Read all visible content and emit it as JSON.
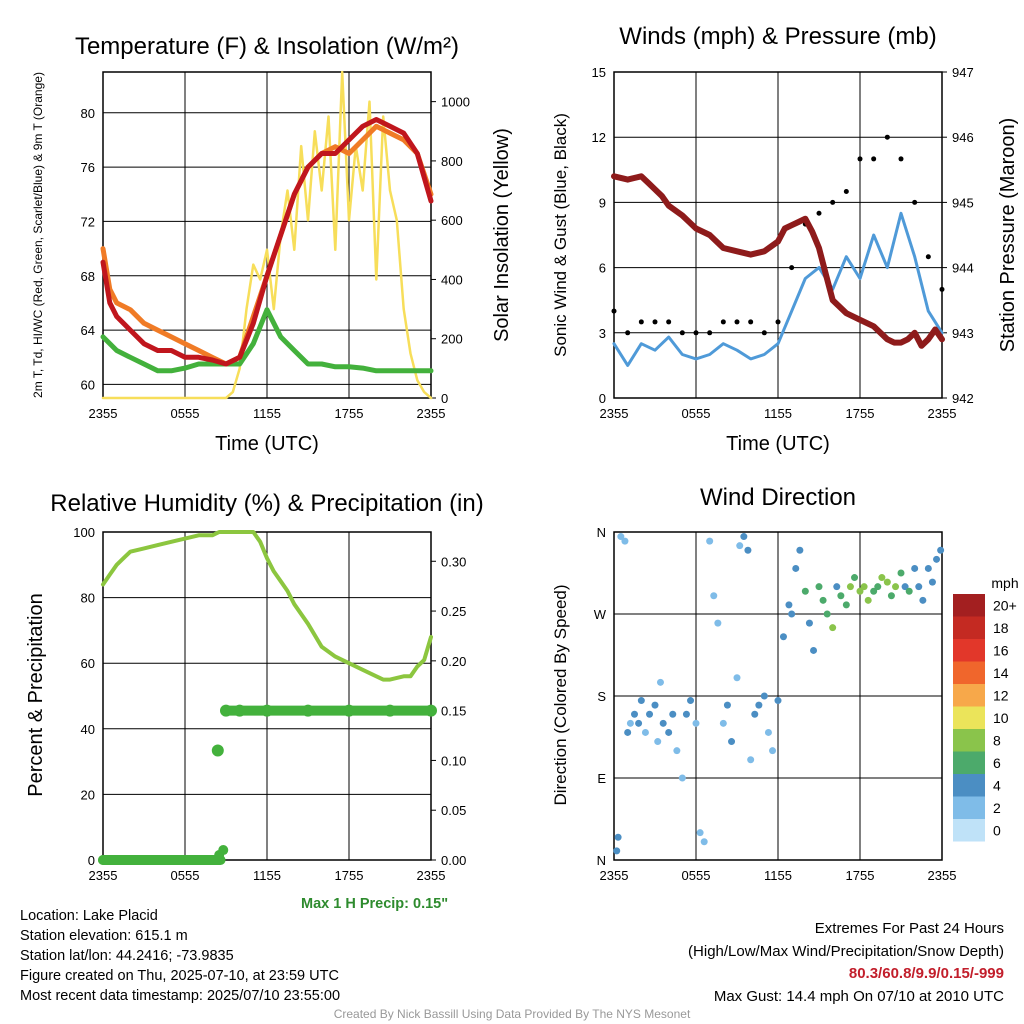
{
  "colors": {
    "red": "#c0161d",
    "orange": "#f07b26",
    "green": "#43b13c",
    "yellow": "#f7de5a",
    "blue": "#4f9ad8",
    "maroon": "#8e1b1b",
    "lightgreen": "#8cc63f",
    "precip": "#43b13c"
  },
  "chart_data": [
    {
      "type": "line",
      "title": "Temperature (F) & Insolation (W/m²)",
      "xlabel": "Time (UTC)",
      "ylabel": "2m T, Td, HI/WC (Red, Green, Scarlet/Blue) & 9m T (Orange)",
      "y2label": "Solar Insolation (Yellow)",
      "xticks": [
        "2355",
        "0555",
        "1155",
        "1755",
        "2355"
      ],
      "yticks": [
        60,
        64,
        68,
        72,
        76,
        80
      ],
      "y2ticks": [
        0,
        200,
        400,
        600,
        800,
        1000
      ],
      "ylim": [
        59,
        83
      ],
      "y2lim": [
        0,
        1100
      ],
      "xlim": [
        0,
        24
      ],
      "series": [
        {
          "color": "orange",
          "hours": [
            0,
            0.5,
            1,
            2,
            3,
            4,
            5,
            6,
            7,
            8,
            9,
            10,
            11,
            12,
            13,
            14,
            15,
            16,
            17,
            18,
            19,
            20,
            21,
            22,
            23,
            24
          ],
          "values": [
            70,
            67,
            66,
            65.5,
            64.5,
            64,
            63.5,
            63,
            62.5,
            62,
            61.5,
            62,
            65,
            68,
            71,
            74,
            76,
            77,
            77.5,
            77,
            78,
            79,
            78.5,
            78,
            77,
            74
          ]
        },
        {
          "color": "red",
          "hours": [
            0,
            0.5,
            1,
            2,
            3,
            4,
            5,
            6,
            7,
            8,
            9,
            10,
            11,
            12,
            13,
            14,
            15,
            16,
            17,
            18,
            19,
            20,
            21,
            22,
            23,
            24
          ],
          "values": [
            69,
            66,
            65,
            64,
            63,
            62.5,
            62.5,
            62,
            62,
            61.8,
            61.5,
            62,
            64.5,
            68,
            71,
            74,
            76,
            77,
            77,
            78,
            79,
            79.5,
            79,
            78.5,
            77,
            73.5
          ]
        },
        {
          "color": "green",
          "hours": [
            0,
            1,
            2,
            3,
            4,
            5,
            6,
            7,
            8,
            9,
            10,
            11,
            12,
            13,
            14,
            15,
            16,
            17,
            18,
            19,
            20,
            21,
            22,
            23,
            24
          ],
          "values": [
            63.5,
            62.5,
            62,
            61.5,
            61,
            61,
            61.2,
            61.5,
            61.5,
            61.5,
            61.5,
            63,
            65.5,
            63.5,
            62.5,
            61.5,
            61.5,
            61.3,
            61.3,
            61.2,
            61,
            61,
            61,
            61,
            61
          ]
        },
        {
          "color": "yellow",
          "axis": "y2",
          "hours": [
            0,
            9,
            9.5,
            10,
            10.5,
            11,
            11.5,
            12,
            12.5,
            13,
            13.5,
            14,
            14.5,
            15,
            15.5,
            16,
            16.5,
            17,
            17.5,
            18,
            18.5,
            19,
            19.5,
            20,
            20.5,
            21,
            21.5,
            22,
            22.5,
            23,
            23.5,
            24
          ],
          "values": [
            0,
            0,
            20,
            100,
            300,
            450,
            400,
            500,
            300,
            550,
            700,
            500,
            850,
            600,
            900,
            700,
            950,
            500,
            1100,
            600,
            850,
            700,
            1000,
            400,
            950,
            700,
            600,
            300,
            150,
            60,
            20,
            0
          ]
        }
      ]
    },
    {
      "type": "line",
      "title": "Winds (mph) & Pressure (mb)",
      "xlabel": "Time (UTC)",
      "ylabel": "Sonic Wind & Gust (Blue, Black)",
      "y2label": "Station Pressure (Maroon)",
      "xticks": [
        "2355",
        "0555",
        "1155",
        "1755",
        "2355"
      ],
      "yticks": [
        0,
        3,
        6,
        9,
        12,
        15
      ],
      "y2ticks": [
        942,
        943,
        944,
        945,
        946,
        947
      ],
      "ylim": [
        0,
        15
      ],
      "y2lim": [
        942,
        947
      ],
      "xlim": [
        0,
        24
      ],
      "series": [
        {
          "name": "wind",
          "color": "blue",
          "hours": [
            0,
            1,
            2,
            3,
            4,
            5,
            6,
            7,
            8,
            9,
            10,
            11,
            12,
            13,
            14,
            15,
            16,
            17,
            18,
            19,
            20,
            21,
            22,
            23,
            24
          ],
          "values": [
            2.5,
            1.5,
            2.5,
            2.2,
            2.8,
            2,
            1.8,
            2,
            2.5,
            2.2,
            1.8,
            2,
            2.5,
            4,
            5.5,
            6,
            5,
            6.5,
            5.5,
            7.5,
            6,
            8.5,
            6.5,
            4,
            3
          ]
        },
        {
          "name": "gust",
          "color": "#000000",
          "hours": [
            0,
            1,
            2,
            3,
            4,
            5,
            6,
            7,
            8,
            9,
            10,
            11,
            12,
            13,
            14,
            15,
            16,
            17,
            18,
            19,
            20,
            21,
            22,
            23,
            24
          ],
          "values": [
            4,
            3,
            3.5,
            3.5,
            3.5,
            3,
            3,
            3,
            3.5,
            3.5,
            3.5,
            3,
            3.5,
            6,
            8,
            8.5,
            9,
            9.5,
            11,
            11,
            12,
            11,
            9,
            6.5,
            5
          ]
        },
        {
          "name": "pressure",
          "color": "maroon",
          "axis": "y2",
          "hours": [
            0,
            1,
            2,
            2.5,
            3,
            3.5,
            4,
            5,
            5.5,
            6,
            7,
            8,
            9,
            10,
            11,
            12,
            12.5,
            13,
            13.5,
            14,
            14.5,
            15,
            15.5,
            16,
            17,
            18,
            19,
            19.5,
            20,
            20.5,
            21,
            21.5,
            22,
            22.5,
            23,
            23.5,
            24
          ],
          "values": [
            945.4,
            945.35,
            945.4,
            945.3,
            945.2,
            945.1,
            944.95,
            944.8,
            944.7,
            944.6,
            944.5,
            944.3,
            944.25,
            944.2,
            944.25,
            944.4,
            944.6,
            944.65,
            944.7,
            944.75,
            944.55,
            944.3,
            943.9,
            943.5,
            943.3,
            943.2,
            943.1,
            943,
            942.9,
            942.85,
            942.85,
            942.9,
            943,
            942.8,
            942.9,
            943.05,
            942.9
          ]
        }
      ]
    },
    {
      "type": "line",
      "title": "Relative Humidity (%) & Precipitation (in)",
      "ylabel": "Percent & Precipitation",
      "xticks": [
        "2355",
        "0555",
        "1155",
        "1755",
        "2355"
      ],
      "yticks": [
        0,
        20,
        40,
        60,
        80,
        100
      ],
      "y2ticks": [
        "0.00",
        "0.05",
        "0.10",
        "0.15",
        "0.20",
        "0.25",
        "0.30"
      ],
      "ylim": [
        0,
        100
      ],
      "y2lim": [
        0,
        0.3294
      ],
      "xlim": [
        0,
        24
      ],
      "series": [
        {
          "name": "rh",
          "color": "lightgreen",
          "hours": [
            0,
            0.5,
            1,
            1.5,
            2,
            3,
            4,
            5,
            6,
            7,
            8,
            8.5,
            9,
            10,
            11,
            11.5,
            12,
            12.5,
            13,
            13.5,
            14,
            15,
            16,
            17,
            18,
            19,
            20,
            20.5,
            21,
            22,
            22.5,
            23,
            23.5,
            24
          ],
          "values": [
            84,
            87,
            90,
            92,
            94,
            95,
            96,
            97,
            98,
            99,
            99,
            100,
            100,
            100,
            100,
            97,
            92,
            88,
            85,
            82,
            78,
            72,
            65,
            62,
            60,
            58,
            56,
            55,
            55,
            56,
            56,
            59,
            61,
            68
          ]
        },
        {
          "name": "precip",
          "color": "precip",
          "axis": "y2",
          "hours": [
            0,
            1,
            2,
            3,
            4,
            5,
            6,
            7,
            8,
            8.2,
            8.5,
            8.8,
            9,
            10,
            12,
            15,
            18,
            21,
            24
          ],
          "values": [
            0,
            0,
            0,
            0,
            0,
            0,
            0,
            0,
            0,
            0,
            0.005,
            0.01,
            0.15,
            0.15,
            0.15,
            0.15,
            0.15,
            0.15,
            0.15
          ]
        }
      ]
    },
    {
      "type": "scatter",
      "title": "Wind Direction",
      "ylabel": "Direction (Colored By Speed)",
      "xticks": [
        "2355",
        "0555",
        "1155",
        "1755",
        "2355"
      ],
      "yticks": [
        "N",
        "E",
        "S",
        "W",
        "N"
      ],
      "ylim": [
        0,
        360
      ],
      "xlim": [
        0,
        24
      ],
      "legend_title": "mph",
      "legend_labels": [
        "20+",
        "18",
        "16",
        "14",
        "12",
        "10",
        "8",
        "6",
        "4",
        "2",
        "0"
      ],
      "legend_colors": [
        "#a31f20",
        "#c42a22",
        "#e2372a",
        "#f0662c",
        "#f7a84a",
        "#ebe45a",
        "#8ac44b",
        "#4caa6b",
        "#4b8ec3",
        "#7fbce8",
        "#bfe2f8"
      ],
      "points": [
        [
          0.2,
          10,
          4
        ],
        [
          0.3,
          25,
          4
        ],
        [
          0.5,
          355,
          2
        ],
        [
          0.8,
          350,
          2
        ],
        [
          1.0,
          140,
          4
        ],
        [
          1.2,
          150,
          2
        ],
        [
          1.5,
          160,
          3
        ],
        [
          1.8,
          150,
          4
        ],
        [
          2,
          175,
          3
        ],
        [
          2.3,
          140,
          2
        ],
        [
          2.6,
          160,
          4
        ],
        [
          3,
          170,
          3
        ],
        [
          3.2,
          130,
          2
        ],
        [
          3.4,
          195,
          2
        ],
        [
          3.6,
          150,
          4
        ],
        [
          4,
          140,
          3
        ],
        [
          4.3,
          160,
          4
        ],
        [
          4.6,
          120,
          2
        ],
        [
          5,
          90,
          2
        ],
        [
          5.3,
          160,
          3
        ],
        [
          5.6,
          175,
          4
        ],
        [
          6,
          150,
          2
        ],
        [
          6.3,
          30,
          2
        ],
        [
          6.6,
          20,
          2
        ],
        [
          7,
          350,
          2
        ],
        [
          7.3,
          290,
          2
        ],
        [
          7.6,
          260,
          2
        ],
        [
          8,
          150,
          2
        ],
        [
          8.3,
          170,
          4
        ],
        [
          8.6,
          130,
          3
        ],
        [
          9,
          200,
          2
        ],
        [
          9.2,
          345,
          2
        ],
        [
          9.5,
          355,
          4
        ],
        [
          9.8,
          340,
          3
        ],
        [
          10,
          110,
          2
        ],
        [
          10.3,
          160,
          3
        ],
        [
          10.6,
          170,
          4
        ],
        [
          11,
          180,
          3
        ],
        [
          11.3,
          140,
          2
        ],
        [
          11.6,
          120,
          2
        ],
        [
          12,
          175,
          4
        ],
        [
          12.4,
          245,
          4
        ],
        [
          12.8,
          280,
          4
        ],
        [
          13,
          270,
          3
        ],
        [
          13.3,
          320,
          4
        ],
        [
          13.6,
          340,
          4
        ],
        [
          14,
          295,
          5
        ],
        [
          14.3,
          260,
          4
        ],
        [
          14.6,
          230,
          4
        ],
        [
          15,
          300,
          6
        ],
        [
          15.3,
          285,
          5
        ],
        [
          15.6,
          270,
          6
        ],
        [
          16,
          255,
          7
        ],
        [
          16.3,
          300,
          4
        ],
        [
          16.6,
          290,
          5
        ],
        [
          17,
          280,
          6
        ],
        [
          17.3,
          300,
          7
        ],
        [
          17.6,
          310,
          6
        ],
        [
          18,
          295,
          7
        ],
        [
          18.3,
          300,
          8
        ],
        [
          18.6,
          285,
          7
        ],
        [
          19,
          295,
          6
        ],
        [
          19.3,
          300,
          6
        ],
        [
          19.6,
          310,
          7
        ],
        [
          20,
          305,
          8
        ],
        [
          20.3,
          290,
          6
        ],
        [
          20.6,
          300,
          7
        ],
        [
          21,
          315,
          5
        ],
        [
          21.3,
          300,
          4
        ],
        [
          21.6,
          295,
          5
        ],
        [
          22,
          320,
          3
        ],
        [
          22.3,
          300,
          4
        ],
        [
          22.6,
          285,
          3
        ],
        [
          23,
          320,
          4
        ],
        [
          23.3,
          305,
          4
        ],
        [
          23.6,
          330,
          4
        ],
        [
          23.9,
          340,
          4
        ]
      ]
    }
  ],
  "precip_note": "Max 1 H Precip: 0.15\"",
  "info": {
    "location": "Location: Lake Placid",
    "elevation": "Station elevation: 615.1 m",
    "latlon": "Station lat/lon: 44.2416; -73.9835",
    "created": "Figure created on Thu, 2025-07-10, at 23:59 UTC",
    "recent": "Most recent data timestamp: 2025/07/10 23:55:00"
  },
  "extremes": {
    "heading": "Extremes For Past 24 Hours",
    "subheading": "(High/Low/Max Wind/Precipitation/Snow Depth)",
    "values": "80.3/60.8/9.9/0.15/-999",
    "gust": "Max Gust: 14.4 mph On 07/10 at 2010 UTC"
  },
  "credit": "Created By Nick Bassill Using Data Provided By The NYS Mesonet"
}
